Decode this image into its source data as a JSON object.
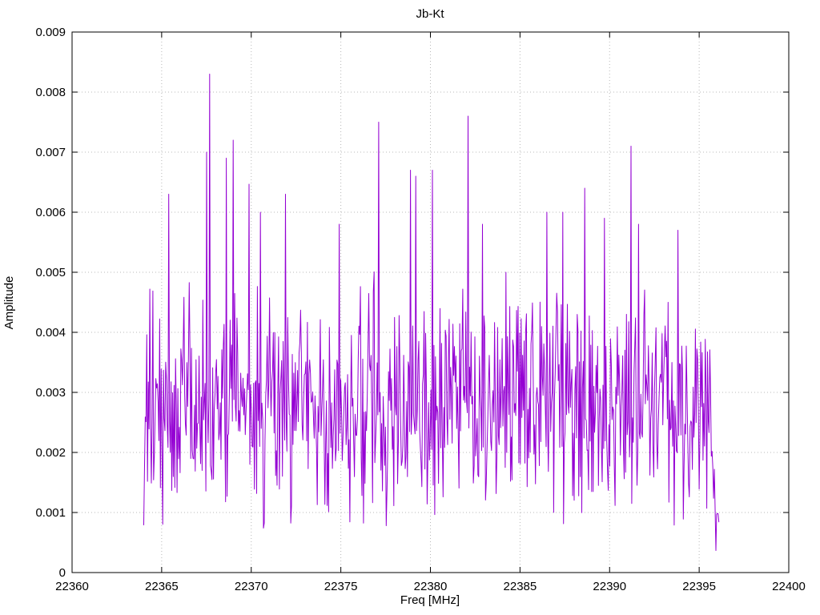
{
  "chart_data": {
    "type": "line",
    "title": "Jb-Kt",
    "xlabel": "Freq [MHz]",
    "ylabel": "Amplitude",
    "xlim": [
      22360,
      22400
    ],
    "ylim": [
      0,
      0.009
    ],
    "x_ticks": [
      22360,
      22365,
      22370,
      22375,
      22380,
      22385,
      22390,
      22395,
      22400
    ],
    "y_tick_values": [
      0,
      0.001,
      0.002,
      0.003,
      0.004,
      0.005,
      0.006,
      0.007,
      0.008,
      0.009
    ],
    "y_tick_labels": [
      "0",
      "0.001",
      "0.002",
      "0.003",
      "0.004",
      "0.005",
      "0.006",
      "0.007",
      "0.008",
      "0.009"
    ],
    "grid": true,
    "legend": "none",
    "line_color": "#9400D3",
    "signal": {
      "description": "Dense noise-like amplitude spectrum spanning 22364-22396 MHz, baseline roughly 0.001-0.005 with sporadic spikes up to 0.0083, tapering to ~0.0005 at the upper edge",
      "x_start": 22364.0,
      "x_end": 22396.1,
      "n_points": 760,
      "seed": 1337,
      "base": 0.0006,
      "spread": 0.0045,
      "spike_prob": 0.035,
      "spike_scale": 0.0033,
      "end_taper_points": 16,
      "peaks": [
        [
          22365.4,
          0.0063
        ],
        [
          22367.5,
          0.007
        ],
        [
          22367.7,
          0.0083
        ],
        [
          22368.6,
          0.0069
        ],
        [
          22369.0,
          0.0072
        ],
        [
          22370.5,
          0.006
        ],
        [
          22371.9,
          0.0063
        ],
        [
          22374.9,
          0.0058
        ],
        [
          22377.1,
          0.0075
        ],
        [
          22378.9,
          0.0067
        ],
        [
          22379.2,
          0.0066
        ],
        [
          22380.1,
          0.0067
        ],
        [
          22382.1,
          0.0076
        ],
        [
          22382.9,
          0.0058
        ],
        [
          22384.2,
          0.005
        ],
        [
          22386.5,
          0.006
        ],
        [
          22387.4,
          0.006
        ],
        [
          22388.6,
          0.0064
        ],
        [
          22389.7,
          0.0059
        ],
        [
          22391.2,
          0.0071
        ],
        [
          22391.6,
          0.0058
        ],
        [
          22393.8,
          0.0057
        ]
      ]
    }
  }
}
